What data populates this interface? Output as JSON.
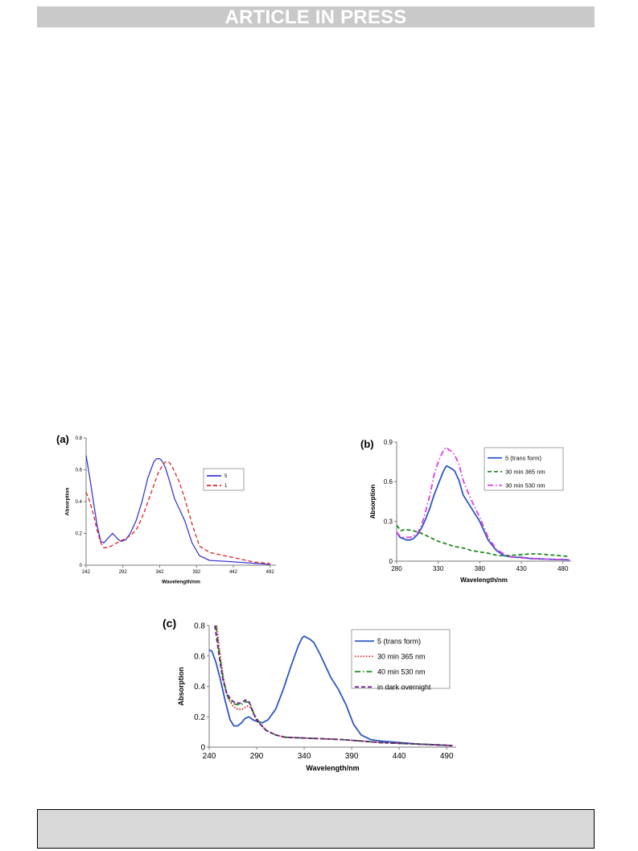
{
  "banner": {
    "text": "ARTICLE IN PRESS"
  },
  "chart_data": [
    {
      "panel_label": "(a)",
      "type": "line",
      "xlabel": "Wavelength/nm",
      "ylabel": "Absorption",
      "xlim": [
        242,
        500
      ],
      "ylim": [
        0,
        0.8
      ],
      "xticks": [
        242,
        292,
        342,
        392,
        442,
        492
      ],
      "yticks": [
        0,
        0.2,
        0.4,
        0.6,
        0.8
      ],
      "legend": "top-right",
      "series": [
        {
          "name": "5",
          "color": "#3a3ad6",
          "dash": "solid",
          "x": [
            242,
            247,
            252,
            257,
            262,
            266,
            270,
            274,
            278,
            282,
            286,
            290,
            296,
            302,
            310,
            318,
            326,
            334,
            338,
            342,
            346,
            350,
            356,
            362,
            368,
            376,
            386,
            396,
            410,
            430,
            460,
            492
          ],
          "y": [
            0.69,
            0.55,
            0.4,
            0.25,
            0.15,
            0.14,
            0.16,
            0.18,
            0.2,
            0.18,
            0.16,
            0.15,
            0.16,
            0.2,
            0.28,
            0.4,
            0.55,
            0.65,
            0.67,
            0.67,
            0.65,
            0.61,
            0.52,
            0.42,
            0.36,
            0.28,
            0.14,
            0.06,
            0.03,
            0.025,
            0.015,
            0.005
          ]
        },
        {
          "name": "1",
          "color": "#e52020",
          "dash": "dash",
          "x": [
            242,
            247,
            252,
            257,
            262,
            266,
            270,
            276,
            284,
            292,
            300,
            310,
            320,
            330,
            340,
            346,
            350,
            354,
            358,
            362,
            368,
            376,
            386,
            396,
            410,
            430,
            450,
            470,
            492
          ],
          "y": [
            0.46,
            0.4,
            0.32,
            0.22,
            0.14,
            0.11,
            0.11,
            0.12,
            0.14,
            0.16,
            0.18,
            0.22,
            0.32,
            0.45,
            0.58,
            0.63,
            0.65,
            0.65,
            0.63,
            0.59,
            0.53,
            0.42,
            0.26,
            0.12,
            0.08,
            0.06,
            0.04,
            0.02,
            0.01
          ]
        }
      ]
    },
    {
      "panel_label": "(b)",
      "type": "line",
      "xlabel": "Wavelength/nm",
      "ylabel": "Absorption",
      "xlim": [
        280,
        490
      ],
      "ylim": [
        0,
        0.9
      ],
      "xticks": [
        280,
        330,
        380,
        430,
        480
      ],
      "yticks": [
        0,
        0.3,
        0.6,
        0.9
      ],
      "legend": "top-right",
      "series": [
        {
          "name": "5 (trans form)",
          "color": "#2b57c4",
          "dash": "solid",
          "x": [
            280,
            284,
            288,
            292,
            296,
            300,
            305,
            310,
            315,
            320,
            325,
            330,
            335,
            338,
            340,
            343,
            346,
            350,
            355,
            360,
            365,
            370,
            380,
            390,
            400,
            410,
            420,
            430,
            440,
            460,
            488
          ],
          "y": [
            0.22,
            0.18,
            0.17,
            0.16,
            0.16,
            0.17,
            0.2,
            0.25,
            0.32,
            0.4,
            0.5,
            0.58,
            0.66,
            0.7,
            0.72,
            0.71,
            0.7,
            0.68,
            0.61,
            0.5,
            0.45,
            0.4,
            0.3,
            0.16,
            0.08,
            0.04,
            0.03,
            0.03,
            0.02,
            0.015,
            0.01
          ]
        },
        {
          "name": "30 min 365 nm",
          "color": "#1e8a1e",
          "dash": "dash",
          "x": [
            280,
            285,
            290,
            300,
            310,
            320,
            330,
            340,
            350,
            360,
            370,
            380,
            390,
            400,
            410,
            420,
            430,
            440,
            450,
            460,
            470,
            488
          ],
          "y": [
            0.27,
            0.23,
            0.24,
            0.23,
            0.21,
            0.18,
            0.15,
            0.13,
            0.11,
            0.1,
            0.08,
            0.07,
            0.06,
            0.045,
            0.04,
            0.045,
            0.05,
            0.055,
            0.055,
            0.05,
            0.045,
            0.035
          ]
        },
        {
          "name": "30 min 530 nm",
          "color": "#e23ce2",
          "dash": "dashdot",
          "x": [
            280,
            284,
            288,
            292,
            296,
            300,
            305,
            310,
            315,
            320,
            325,
            330,
            335,
            338,
            340,
            343,
            346,
            350,
            355,
            360,
            365,
            370,
            380,
            390,
            400,
            410,
            420,
            430,
            440,
            460,
            488
          ],
          "y": [
            0.22,
            0.19,
            0.18,
            0.18,
            0.18,
            0.19,
            0.21,
            0.27,
            0.38,
            0.5,
            0.65,
            0.75,
            0.82,
            0.85,
            0.86,
            0.84,
            0.83,
            0.8,
            0.73,
            0.61,
            0.53,
            0.46,
            0.33,
            0.18,
            0.09,
            0.05,
            0.03,
            0.025,
            0.02,
            0.015,
            0.01
          ]
        }
      ]
    },
    {
      "panel_label": "(c)",
      "type": "line",
      "xlabel": "Wavelength/nm",
      "ylabel": "Absorption",
      "xlim": [
        240,
        500
      ],
      "ylim": [
        0,
        0.8
      ],
      "xticks": [
        240,
        290,
        340,
        390,
        440,
        490
      ],
      "yticks": [
        0,
        0.2,
        0.4,
        0.6,
        0.8
      ],
      "legend": "top-right",
      "series": [
        {
          "name": "5 (trans form)",
          "color": "#2b57c4",
          "dash": "solid",
          "x": [
            240,
            243,
            247,
            252,
            257,
            262,
            266,
            270,
            274,
            278,
            282,
            286,
            290,
            296,
            302,
            310,
            318,
            326,
            334,
            338,
            340,
            343,
            346,
            350,
            356,
            362,
            368,
            376,
            384,
            392,
            400,
            410,
            420,
            440,
            460,
            480,
            496
          ],
          "y": [
            0.64,
            0.63,
            0.56,
            0.44,
            0.3,
            0.18,
            0.14,
            0.14,
            0.16,
            0.19,
            0.2,
            0.18,
            0.17,
            0.16,
            0.18,
            0.25,
            0.38,
            0.53,
            0.67,
            0.72,
            0.73,
            0.72,
            0.71,
            0.69,
            0.62,
            0.54,
            0.46,
            0.38,
            0.28,
            0.15,
            0.08,
            0.05,
            0.04,
            0.03,
            0.02,
            0.015,
            0.01
          ]
        },
        {
          "name": "30 min 365 nm",
          "color": "#e02020",
          "dash": "dot",
          "x": [
            248,
            252,
            256,
            260,
            265,
            270,
            275,
            280,
            284,
            288,
            292,
            300,
            310,
            320,
            340,
            360,
            380,
            400,
            420,
            440,
            460,
            480,
            496
          ],
          "y": [
            0.8,
            0.58,
            0.42,
            0.32,
            0.27,
            0.25,
            0.25,
            0.27,
            0.26,
            0.2,
            0.16,
            0.11,
            0.08,
            0.065,
            0.06,
            0.055,
            0.05,
            0.04,
            0.03,
            0.025,
            0.02,
            0.015,
            0.01
          ]
        },
        {
          "name": "40 min 530 nm",
          "color": "#1e8a1e",
          "dash": "dashdot",
          "x": [
            247,
            251,
            255,
            259,
            264,
            269,
            274,
            279,
            283,
            287,
            292,
            300,
            310,
            320,
            340,
            360,
            380,
            400,
            420,
            440,
            460,
            480,
            496
          ],
          "y": [
            0.8,
            0.6,
            0.44,
            0.34,
            0.29,
            0.28,
            0.28,
            0.3,
            0.29,
            0.22,
            0.17,
            0.11,
            0.08,
            0.065,
            0.06,
            0.055,
            0.05,
            0.04,
            0.03,
            0.025,
            0.02,
            0.015,
            0.01
          ]
        },
        {
          "name": "in dark overnight",
          "color": "#6a1a8a",
          "dash": "dash",
          "x": [
            246,
            250,
            254,
            258,
            263,
            268,
            273,
            278,
            282,
            286,
            291,
            300,
            310,
            320,
            340,
            360,
            380,
            400,
            420,
            440,
            460,
            480,
            496
          ],
          "y": [
            0.8,
            0.62,
            0.46,
            0.36,
            0.31,
            0.29,
            0.29,
            0.31,
            0.3,
            0.23,
            0.17,
            0.11,
            0.08,
            0.065,
            0.06,
            0.055,
            0.05,
            0.04,
            0.03,
            0.025,
            0.02,
            0.015,
            0.01
          ]
        }
      ]
    }
  ]
}
